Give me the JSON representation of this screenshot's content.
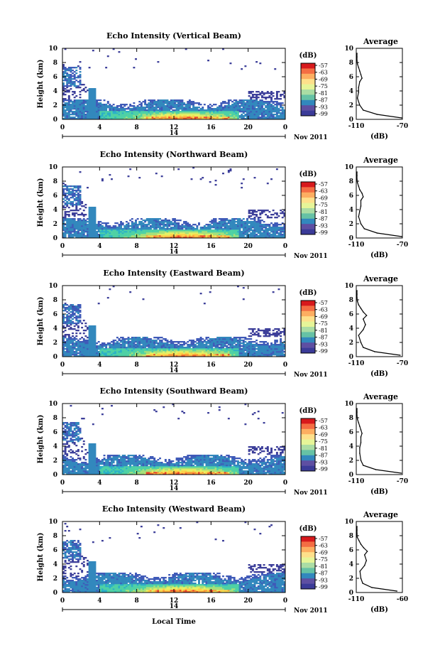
{
  "figure": {
    "x_axis_label": "Local Time",
    "date_label": "Nov 2011",
    "day_label": "14"
  },
  "colorbar": {
    "label": "(dB)",
    "tick_labels": [
      "-57",
      "-63",
      "-69",
      "-75",
      "-81",
      "-87",
      "-93",
      "-99"
    ],
    "colors": [
      "#d7191c",
      "#f46d43",
      "#fdae61",
      "#fee08b",
      "#e6f598",
      "#abdda4",
      "#66c2a5",
      "#3288bd",
      "#5e4fa2",
      "#3b3b98"
    ]
  },
  "chart_data": [
    {
      "type": "heatmap",
      "title": "Echo Intensity (Vertical Beam)",
      "ylabel": "Height (km)",
      "xlim": [
        0,
        24
      ],
      "ylim": [
        0,
        10
      ],
      "x_ticks": [
        "0",
        "4",
        "8",
        "12",
        "16",
        "20",
        "0"
      ],
      "y_ticks": [
        "0",
        "2",
        "4",
        "6",
        "8",
        "10"
      ]
    },
    {
      "type": "line",
      "title": "Average",
      "xlabel": "(dB)",
      "xlim": [
        -110,
        -70
      ],
      "ylim": [
        0,
        10
      ],
      "x_ticks": [
        "-110",
        "-70"
      ],
      "y_ticks": [
        "0",
        "2",
        "4",
        "6",
        "8",
        "10"
      ],
      "x": [
        -68,
        -92,
        -104,
        -107,
        -109,
        -108,
        -108,
        -107,
        -105,
        -106,
        -107,
        -108,
        -109,
        -110,
        -111,
        -110
      ],
      "y": [
        0.2,
        0.7,
        1.3,
        2.0,
        3.0,
        3.8,
        4.5,
        5.3,
        5.8,
        6.3,
        6.8,
        7.3,
        7.8,
        8.3,
        8.8,
        9.3
      ]
    },
    {
      "type": "heatmap",
      "title": "Echo Intensity (Northward Beam)",
      "ylabel": "Height (km)",
      "xlim": [
        0,
        24
      ],
      "ylim": [
        0,
        10
      ],
      "x_ticks": [
        "0",
        "4",
        "8",
        "12",
        "16",
        "20",
        "0"
      ],
      "y_ticks": [
        "0",
        "2",
        "4",
        "6",
        "8",
        "10"
      ]
    },
    {
      "type": "line",
      "title": "Average",
      "xlabel": "(dB)",
      "xlim": [
        -110,
        -70
      ],
      "ylim": [
        0,
        10
      ],
      "x_ticks": [
        "-110",
        "-70"
      ],
      "y_ticks": [
        "0",
        "2",
        "4",
        "6",
        "8",
        "10"
      ],
      "x": [
        -70,
        -92,
        -103,
        -106,
        -108,
        -107,
        -106,
        -106,
        -104,
        -105,
        -107,
        -108,
        -109,
        -110,
        -111,
        -110
      ],
      "y": [
        0.2,
        0.7,
        1.3,
        2.0,
        3.0,
        3.8,
        4.5,
        5.3,
        5.8,
        6.3,
        6.8,
        7.3,
        7.8,
        8.3,
        8.8,
        9.3
      ]
    },
    {
      "type": "heatmap",
      "title": "Echo Intensity (Eastward Beam)",
      "ylabel": "Height (km)",
      "xlim": [
        0,
        24
      ],
      "ylim": [
        0,
        10
      ],
      "x_ticks": [
        "0",
        "4",
        "8",
        "12",
        "16",
        "20",
        "0"
      ],
      "y_ticks": [
        "0",
        "2",
        "4",
        "6",
        "8",
        "10"
      ]
    },
    {
      "type": "line",
      "title": "Average",
      "xlabel": "(dB)",
      "xlim": [
        -110,
        -70
      ],
      "ylim": [
        0,
        10
      ],
      "x_ticks": [
        "-110",
        "-70"
      ],
      "y_ticks": [
        "0",
        "2",
        "4",
        "6",
        "8",
        "10"
      ],
      "x": [
        -72,
        -94,
        -104,
        -106,
        -108,
        -104,
        -102,
        -104,
        -101,
        -104,
        -106,
        -108,
        -109,
        -110,
        -111,
        -110
      ],
      "y": [
        0.2,
        0.7,
        1.3,
        2.0,
        3.0,
        3.8,
        4.5,
        5.3,
        5.8,
        6.3,
        6.8,
        7.3,
        7.8,
        8.3,
        8.8,
        9.3
      ]
    },
    {
      "type": "heatmap",
      "title": "Echo Intensity (Southward Beam)",
      "ylabel": "Height (km)",
      "xlim": [
        0,
        24
      ],
      "ylim": [
        0,
        10
      ],
      "x_ticks": [
        "0",
        "4",
        "8",
        "12",
        "16",
        "20",
        "0"
      ],
      "y_ticks": [
        "0",
        "2",
        "4",
        "6",
        "8",
        "10"
      ]
    },
    {
      "type": "line",
      "title": "Average",
      "xlabel": "(dB)",
      "xlim": [
        -110,
        -70
      ],
      "ylim": [
        0,
        10
      ],
      "x_ticks": [
        "-110",
        "-70"
      ],
      "y_ticks": [
        "0",
        "2",
        "4",
        "6",
        "8",
        "10"
      ],
      "x": [
        -71,
        -93,
        -104,
        -106,
        -107,
        -107,
        -106,
        -106,
        -105,
        -106,
        -107,
        -108,
        -109,
        -110,
        -111,
        -110
      ],
      "y": [
        0.2,
        0.7,
        1.3,
        2.0,
        3.0,
        3.8,
        4.5,
        5.3,
        5.8,
        6.3,
        6.8,
        7.3,
        7.8,
        8.3,
        8.8,
        9.3
      ]
    },
    {
      "type": "heatmap",
      "title": "Echo Intensity (Westward Beam)",
      "ylabel": "Height (km)",
      "xlim": [
        0,
        24
      ],
      "ylim": [
        0,
        10
      ],
      "x_ticks": [
        "0",
        "4",
        "8",
        "12",
        "16",
        "20",
        "0"
      ],
      "y_ticks": [
        "0",
        "2",
        "4",
        "6",
        "8",
        "10"
      ]
    },
    {
      "type": "line",
      "title": "Average",
      "xlabel": "(dB)",
      "xlim": [
        -110,
        -60
      ],
      "ylim": [
        0,
        10
      ],
      "x_ticks": [
        "-110",
        "-60"
      ],
      "y_ticks": [
        "0",
        "2",
        "4",
        "6",
        "8",
        "10"
      ],
      "x": [
        -66,
        -93,
        -103,
        -105,
        -106,
        -101,
        -99,
        -101,
        -98,
        -102,
        -105,
        -107,
        -109,
        -110,
        -111,
        -110
      ],
      "y": [
        0.2,
        0.7,
        1.3,
        2.0,
        3.0,
        3.8,
        4.5,
        5.3,
        5.8,
        6.3,
        6.8,
        7.3,
        7.8,
        8.3,
        8.8,
        9.3
      ]
    }
  ]
}
